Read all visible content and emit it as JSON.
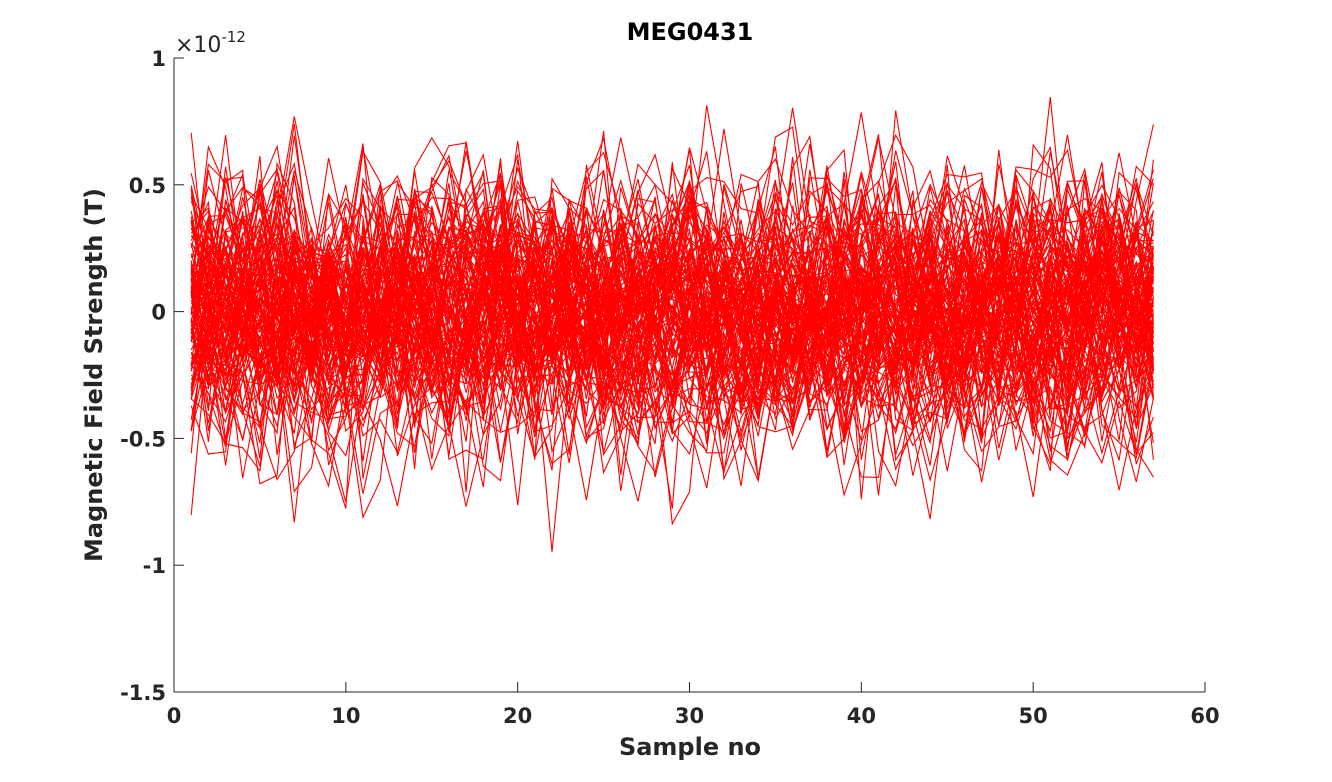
{
  "chart_data": {
    "type": "line",
    "title": "MEG0431",
    "xlabel": "Sample no",
    "ylabel": "Magnetic Field Strength (T)",
    "xlim": [
      0,
      60
    ],
    "ylim": [
      -1.5,
      1
    ],
    "xticks": [
      0,
      10,
      20,
      30,
      40,
      50,
      60
    ],
    "yticks": [
      -1.5,
      -1,
      -0.5,
      0,
      0.5,
      1
    ],
    "xtick_labels": [
      "0",
      "10",
      "20",
      "30",
      "40",
      "50",
      "60"
    ],
    "ytick_labels": [
      "-1.5",
      "-1",
      "-0.5",
      "0",
      "0.5",
      "1"
    ],
    "y_exponent": {
      "prefix": "×10",
      "power": "-12"
    },
    "grid": false,
    "legend": "none",
    "line_color": "#ff0000",
    "x_range": [
      1,
      57
    ],
    "n_trials": 130,
    "approx_y_std": 0.25,
    "approx_y_extremes": [
      -1.02,
      0.87
    ]
  }
}
